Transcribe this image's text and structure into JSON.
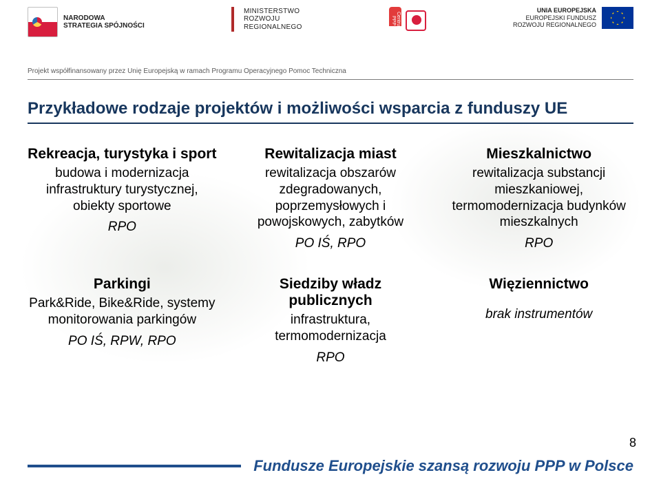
{
  "header": {
    "nss_line1": "NARODOWA",
    "nss_line2": "STRATEGIA SPÓJNOŚCI",
    "mrr_line1": "MINISTERSTWO",
    "mrr_line2": "ROZWOJU",
    "mrr_line3": "REGIONALNEGO",
    "cppp_badge": "Centrum PPP",
    "eu_line1": "UNIA EUROPEJSKA",
    "eu_line2": "EUROPEJSKI FUNDUSZ",
    "eu_line3": "ROZWOJU REGIONALNEGO",
    "subline": "Projekt współfinansowany przez Unię Europejską w ramach Programu Operacyjnego Pomoc Techniczna"
  },
  "title": "Przykładowe rodzaje projektów i możliwości wsparcia z funduszy UE",
  "row1": {
    "c1": {
      "head": "Rekreacja, turystyka i sport",
      "body": "budowa i modernizacja infrastruktury turystycznej, obiekty sportowe",
      "note": "RPO"
    },
    "c2": {
      "head": "Rewitalizacja miast",
      "body": "rewitalizacja obszarów zdegradowanych, poprzemysłowych i powojskowych, zabytków",
      "note": "PO IŚ, RPO"
    },
    "c3": {
      "head": "Mieszkalnictwo",
      "body": "rewitalizacja substancji mieszkaniowej, termomodernizacja budynków mieszkalnych",
      "note": "RPO"
    }
  },
  "row2": {
    "c1": {
      "head": "Parkingi",
      "body": "Park&Ride, Bike&Ride, systemy monitorowania parkingów",
      "note": "PO IŚ, RPW, RPO"
    },
    "c2": {
      "head": "Siedziby władz publicznych",
      "body": "infrastruktura, termomodernizacja",
      "note": "RPO"
    },
    "c3": {
      "head": "Więziennictwo",
      "body": "brak instrumentów",
      "note": ""
    }
  },
  "footer": {
    "text": "Fundusze Europejskie szansą rozwoju PPP w Polsce",
    "bar_color": "#1f4e8c",
    "page": "8"
  },
  "colors": {
    "title": "#17365d",
    "rule": "#7a7a7a",
    "eu_flag_bg": "#003399",
    "eu_flag_star": "#ffcc00"
  }
}
